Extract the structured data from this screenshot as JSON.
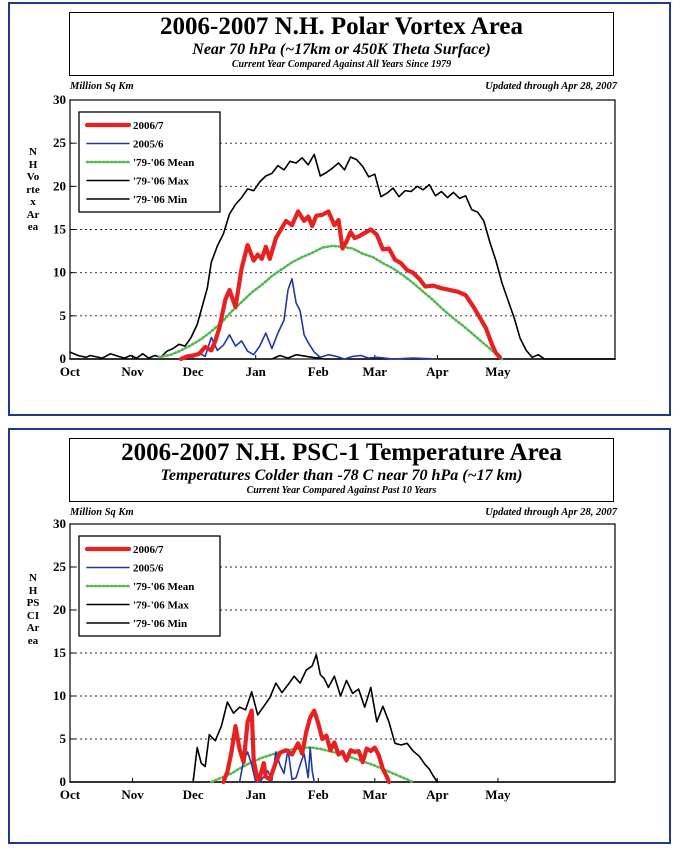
{
  "chart_data": [
    {
      "type": "line",
      "title": "2006-2007 N.H. Polar Vortex Area",
      "subtitle": "Near 70 hPa (~17km or 450K Theta Surface)",
      "subtitle2": "Current Year Compared Against All Years Since 1979",
      "units": "Million Sq Km",
      "updated": "Updated through Apr 28, 2007",
      "ylabel": "NH Vortex Area",
      "ylim": [
        0,
        30
      ],
      "yticks": [
        "0",
        "5",
        "10",
        "15",
        "20",
        "25",
        "30"
      ],
      "xlim": [
        0,
        270
      ],
      "xticks": [
        {
          "label": "Oct",
          "day": 0
        },
        {
          "label": "Nov",
          "day": 31
        },
        {
          "label": "Dec",
          "day": 61
        },
        {
          "label": "Jan",
          "day": 92
        },
        {
          "label": "Feb",
          "day": 123
        },
        {
          "label": "Mar",
          "day": 151
        },
        {
          "label": "Apr",
          "day": 182
        },
        {
          "label": "May",
          "day": 212
        }
      ],
      "grid": "horizontal dotted",
      "legend_position": "top-left",
      "series": [
        {
          "name": "2006/7",
          "color": "#e82020",
          "style": "solid-thick",
          "x": [
            55,
            58,
            61,
            64,
            67,
            70,
            72,
            74,
            77,
            79,
            82,
            85,
            88,
            91,
            93,
            95,
            97,
            99,
            102,
            104,
            107,
            110,
            113,
            116,
            118,
            120,
            122,
            125,
            128,
            131,
            133,
            135,
            137,
            139,
            141,
            143,
            146,
            149,
            152,
            155,
            158,
            161,
            164,
            167,
            170,
            173,
            176,
            180,
            184,
            188,
            192,
            196,
            200,
            203,
            206,
            209,
            211,
            213
          ],
          "y": [
            0,
            0.3,
            0.4,
            0.6,
            1.4,
            1.0,
            2.1,
            3.6,
            6.9,
            8.0,
            6.0,
            10.5,
            13.2,
            11.4,
            12.1,
            11.6,
            13.0,
            11.6,
            14.0,
            14.8,
            16.0,
            15.5,
            17.1,
            16.0,
            16.5,
            15.4,
            16.6,
            16.7,
            17.1,
            15.5,
            16.1,
            12.8,
            13.6,
            14.7,
            14.0,
            14.2,
            14.6,
            15.0,
            14.4,
            12.7,
            12.8,
            11.5,
            11.1,
            10.3,
            10.0,
            9.3,
            8.4,
            8.5,
            8.2,
            8.0,
            7.8,
            7.4,
            6.0,
            4.8,
            3.6,
            1.7,
            0.7,
            0.2
          ]
        },
        {
          "name": "2005/6",
          "color": "#2038a8",
          "style": "solid",
          "x": [
            55,
            60,
            64,
            67,
            70,
            73,
            76,
            79,
            82,
            85,
            88,
            91,
            94,
            97,
            100,
            103,
            106,
            108,
            110,
            112,
            114,
            116,
            118,
            121,
            124,
            128,
            132,
            136,
            140,
            144,
            148,
            152,
            160,
            170,
            182
          ],
          "y": [
            0,
            0.4,
            0.7,
            0.3,
            2.5,
            1.0,
            1.6,
            2.8,
            1.5,
            2.1,
            0.9,
            0.5,
            1.5,
            3.0,
            1.2,
            3.0,
            4.5,
            8.0,
            9.3,
            6.5,
            5.6,
            2.8,
            1.9,
            0.8,
            0.2,
            0.5,
            0.3,
            0,
            0.3,
            0.4,
            0.1,
            0.2,
            0,
            0.1,
            0
          ]
        },
        {
          "name": "'79-'06 Mean",
          "color": "#55b855",
          "style": "dotted",
          "x": [
            44,
            50,
            55,
            60,
            65,
            70,
            75,
            80,
            85,
            90,
            95,
            100,
            105,
            110,
            115,
            120,
            125,
            130,
            135,
            140,
            145,
            150,
            155,
            160,
            165,
            170,
            175,
            180,
            185,
            190,
            195,
            200,
            205,
            210,
            214
          ],
          "y": [
            0.2,
            0.5,
            1.0,
            1.6,
            2.3,
            3.2,
            4.2,
            5.5,
            6.6,
            7.7,
            8.6,
            9.6,
            10.4,
            11.2,
            11.8,
            12.3,
            12.9,
            13.1,
            13.0,
            12.8,
            12.2,
            11.8,
            11.1,
            10.5,
            9.7,
            8.8,
            7.8,
            6.8,
            5.7,
            4.7,
            3.8,
            2.8,
            1.8,
            0.8,
            0
          ]
        },
        {
          "name": "'79-'06 Max",
          "color": "#000000",
          "style": "solid",
          "x": [
            0,
            4,
            8,
            10,
            12,
            16,
            20,
            24,
            27,
            30,
            33,
            36,
            39,
            42,
            45,
            48,
            51,
            54,
            57,
            60,
            63,
            66,
            68,
            70,
            73,
            76,
            79,
            82,
            85,
            88,
            91,
            94,
            97,
            100,
            103,
            106,
            109,
            112,
            115,
            118,
            121,
            124,
            127,
            130,
            133,
            136,
            139,
            142,
            145,
            148,
            151,
            154,
            157,
            160,
            163,
            166,
            169,
            172,
            175,
            178,
            181,
            184,
            187,
            190,
            193,
            196,
            199,
            202,
            205,
            208,
            211,
            214,
            217,
            220,
            223,
            226,
            229,
            232,
            235,
            270
          ],
          "y": [
            0.8,
            0.4,
            0.2,
            0.4,
            0.3,
            0.1,
            0.6,
            0.3,
            0.1,
            0.4,
            0.1,
            0.6,
            0.1,
            0.4,
            0.2,
            0.9,
            1.2,
            1.7,
            1.5,
            2.5,
            4.0,
            6.5,
            8.2,
            11.2,
            13.1,
            14.5,
            16.8,
            17.9,
            18.7,
            19.7,
            19.5,
            20.5,
            21.2,
            21.5,
            22.4,
            21.9,
            22.9,
            22.7,
            23.3,
            22.5,
            23.7,
            21.2,
            21.6,
            22.1,
            22.7,
            21.9,
            23.4,
            23.1,
            22.3,
            21.1,
            21.4,
            18.8,
            19.2,
            19.8,
            18.8,
            19.5,
            19.4,
            20.0,
            19.6,
            20.2,
            18.9,
            19.4,
            18.7,
            19.3,
            18.6,
            18.9,
            17.3,
            17.0,
            16.0,
            13.5,
            11.4,
            8.8,
            6.8,
            4.8,
            2.4,
            1.0,
            0.2,
            0.5,
            0,
            0
          ]
        },
        {
          "name": "'79-'06 Min",
          "color": "#000000",
          "style": "solid",
          "x": [
            0,
            70,
            100,
            104,
            108,
            112,
            120,
            126,
            140,
            150,
            170,
            190,
            270
          ],
          "y": [
            0,
            0,
            0,
            0.4,
            0.1,
            0.5,
            0.2,
            0,
            0,
            0,
            0,
            0,
            0
          ]
        }
      ]
    },
    {
      "type": "line",
      "title": "2006-2007 N.H. PSC-1 Temperature Area",
      "subtitle": "Temperatures Colder than -78 C near 70 hPa (~17 km)",
      "subtitle2": "Current Year Compared Against Past 10 Years",
      "units": "Million Sq Km",
      "updated": "Updated through Apr 28, 2007",
      "ylabel": "NH PSCI Area",
      "ylim": [
        0,
        30
      ],
      "yticks": [
        "0",
        "5",
        "10",
        "15",
        "20",
        "25",
        "30"
      ],
      "xlim": [
        0,
        270
      ],
      "xticks": [
        {
          "label": "Oct",
          "day": 0
        },
        {
          "label": "Nov",
          "day": 31
        },
        {
          "label": "Dec",
          "day": 61
        },
        {
          "label": "Jan",
          "day": 92
        },
        {
          "label": "Feb",
          "day": 123
        },
        {
          "label": "Mar",
          "day": 151
        },
        {
          "label": "Apr",
          "day": 182
        },
        {
          "label": "May",
          "day": 212
        }
      ],
      "grid": "horizontal dotted",
      "legend_position": "top-left",
      "series": [
        {
          "name": "2006/7",
          "color": "#e82020",
          "style": "solid-thick",
          "x": [
            76,
            78,
            80,
            82,
            84,
            86,
            88,
            90,
            91,
            93,
            94,
            96,
            97,
            99,
            100,
            102,
            104,
            107,
            110,
            113,
            115,
            117,
            119,
            121,
            123,
            125,
            127,
            129,
            131,
            133,
            135,
            137,
            139,
            141,
            143,
            145,
            147,
            149,
            151,
            153,
            155,
            157,
            158
          ],
          "y": [
            0,
            1.2,
            3.5,
            6.5,
            3.8,
            2.3,
            7.0,
            8.3,
            2.5,
            0.2,
            0.5,
            2.2,
            0.6,
            0.3,
            1.0,
            2.3,
            3.4,
            3.7,
            3.2,
            4.5,
            3.3,
            5.8,
            7.5,
            8.3,
            6.8,
            5.0,
            5.4,
            3.7,
            4.6,
            3.2,
            3.5,
            2.5,
            3.7,
            3.5,
            3.6,
            2.3,
            3.9,
            3.6,
            4.0,
            3.1,
            1.5,
            0.6,
            0
          ]
        },
        {
          "name": "2005/6",
          "color": "#2038a8",
          "style": "solid",
          "x": [
            84,
            86,
            88,
            90,
            92,
            94,
            96,
            98,
            100,
            102,
            104,
            106,
            108,
            110,
            112,
            114,
            116,
            118,
            119,
            120,
            121
          ],
          "y": [
            0,
            2.5,
            3.5,
            2.0,
            0,
            0,
            0.6,
            1.3,
            0.2,
            3.5,
            2.0,
            1.0,
            3.8,
            0.3,
            0.5,
            2.0,
            3.3,
            0.5,
            4.0,
            1.3,
            0
          ]
        },
        {
          "name": "'79-'06 Mean",
          "color": "#55b855",
          "style": "dotted",
          "x": [
            70,
            75,
            80,
            85,
            90,
            95,
            100,
            105,
            110,
            115,
            120,
            125,
            130,
            135,
            140,
            145,
            150,
            155,
            160,
            165,
            170
          ],
          "y": [
            0,
            0.5,
            1.0,
            1.7,
            2.3,
            2.8,
            3.2,
            3.5,
            3.8,
            4.0,
            4.0,
            3.8,
            3.5,
            3.2,
            2.8,
            2.4,
            2.0,
            1.5,
            1.0,
            0.5,
            0
          ]
        },
        {
          "name": "'79-'06 Max",
          "color": "#000000",
          "style": "solid",
          "x": [
            61,
            63,
            65,
            67,
            69,
            72,
            75,
            78,
            81,
            84,
            87,
            90,
            93,
            96,
            99,
            102,
            105,
            108,
            111,
            114,
            117,
            120,
            122,
            124,
            126,
            128,
            131,
            134,
            137,
            140,
            143,
            146,
            149,
            152,
            155,
            158,
            161,
            164,
            167,
            170,
            173,
            176,
            178,
            180,
            182
          ],
          "y": [
            0,
            4.0,
            2.2,
            1.8,
            5.5,
            4.8,
            6.5,
            9.3,
            8.0,
            8.7,
            8.4,
            10.5,
            7.8,
            8.8,
            9.8,
            11.5,
            10.4,
            11.3,
            12.3,
            11.5,
            13.0,
            13.5,
            14.8,
            12.5,
            12.0,
            11.0,
            12.3,
            10.0,
            11.8,
            10.3,
            10.8,
            8.7,
            11.0,
            7.0,
            8.8,
            7.0,
            4.5,
            4.3,
            4.5,
            3.6,
            3.0,
            2.0,
            1.5,
            0.7,
            0
          ]
        },
        {
          "name": "'79-'06 Min",
          "color": "#000000",
          "style": "solid",
          "x": [
            0,
            270
          ],
          "y": [
            0,
            0
          ]
        }
      ]
    }
  ]
}
